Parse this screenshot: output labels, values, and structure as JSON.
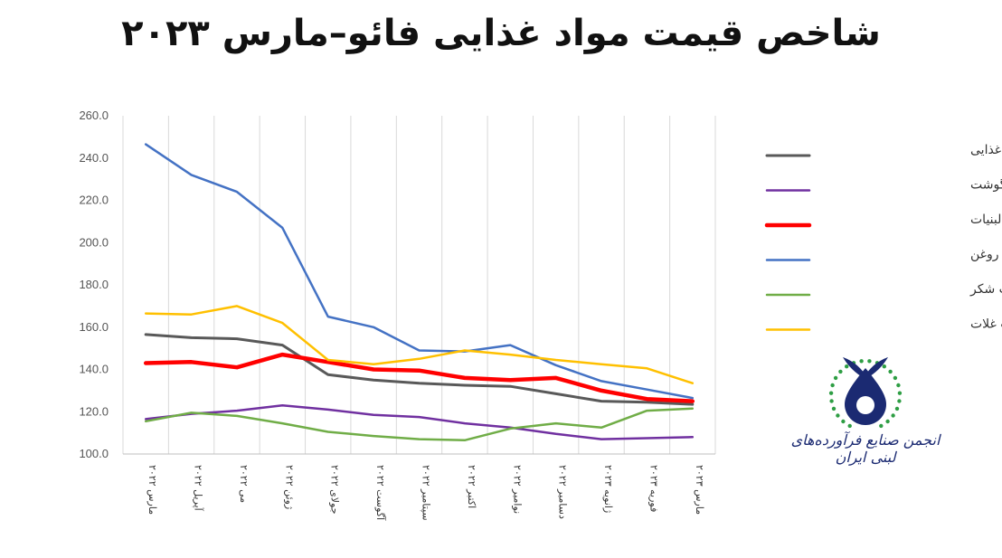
{
  "title": "شاخص قیمت مواد غذایی فائو–مارس ۲۰۲۳",
  "colors": {
    "food": "#595959",
    "meat": "#7030a0",
    "dairy": "#ff0000",
    "oils": "#4472c4",
    "sugar": "#70ad47",
    "cereals": "#ffc000",
    "logo": "#1b2a72",
    "logo_stars": "#2e9e44"
  },
  "chart_data": {
    "type": "line",
    "title": "",
    "xlabel": "",
    "ylabel": "",
    "ylim": [
      100,
      260
    ],
    "yticks": [
      "100.0",
      "120.0",
      "140.0",
      "160.0",
      "180.0",
      "200.0",
      "220.0",
      "240.0",
      "260.0"
    ],
    "grid": "vertical",
    "legend_position": "right",
    "categories": [
      "مارس ۲۰۲۲",
      "آپریل ۲۰۲۲",
      "می ۲۰۲۲",
      "ژوئن ۲۰۲۲",
      "جولای ۲۰۲۲",
      "آگوست ۲۰۲۲",
      "سپتامبر ۲۰۲۲",
      "اکتبر ۲۰۲۲",
      "نوامبر ۲۰۲۲",
      "دسامبر ۲۰۲۲",
      "ژانویه ۲۰۲۳",
      "فوریه ۲۰۲۳",
      "مارس ۲۰۲۳"
    ],
    "series": [
      {
        "name": "شاخص قیمت مواد غذایی",
        "color": "food",
        "width": 3,
        "values": [
          156.5,
          155.0,
          154.5,
          151.5,
          137.5,
          135.0,
          133.5,
          132.5,
          132.0,
          128.5,
          125.0,
          124.5,
          123.5
        ]
      },
      {
        "name": "شاخص قیمت گوشت",
        "color": "meat",
        "width": 2.5,
        "values": [
          116.5,
          119.0,
          120.5,
          123.0,
          121.0,
          118.5,
          117.5,
          114.5,
          112.5,
          109.5,
          107.0,
          107.5,
          108.0
        ]
      },
      {
        "name": "شاخص قیمت لبنیات",
        "color": "dairy",
        "width": 4.5,
        "values": [
          143.0,
          143.5,
          141.0,
          147.0,
          143.5,
          140.0,
          139.5,
          136.0,
          135.0,
          136.0,
          130.0,
          126.0,
          125.0
        ]
      },
      {
        "name": "شاخص قیمت روغن",
        "color": "oils",
        "width": 2.5,
        "values": [
          246.5,
          232.0,
          224.0,
          207.0,
          165.0,
          160.0,
          149.0,
          148.5,
          151.5,
          142.0,
          134.5,
          130.5,
          126.5
        ]
      },
      {
        "name": "شاخص قیمت شکر",
        "color": "sugar",
        "width": 2.5,
        "values": [
          115.5,
          119.5,
          118.0,
          114.5,
          110.5,
          108.5,
          107.0,
          106.5,
          112.0,
          114.5,
          112.5,
          120.5,
          121.5
        ]
      },
      {
        "name": "شاخص قیمت غلات",
        "color": "cereals",
        "width": 2.5,
        "values": [
          166.5,
          166.0,
          170.0,
          162.0,
          144.5,
          142.5,
          145.0,
          149.0,
          147.0,
          144.5,
          142.5,
          140.5,
          133.5
        ]
      }
    ]
  },
  "logo": {
    "text": "انجمن صنایع فرآورده‌های لبنی ایران"
  }
}
